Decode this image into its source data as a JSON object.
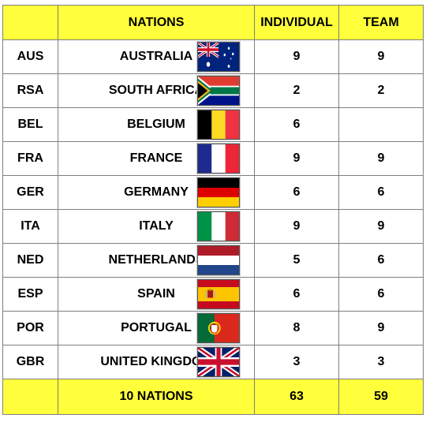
{
  "header": {
    "code": "",
    "nations": "NATIONS",
    "individual": "INDIVIDUAL",
    "team": "TEAM"
  },
  "rows": [
    {
      "code": "AUS",
      "name": "AUSTRALIA",
      "flag": "australia-flag-icon",
      "individual": "9",
      "team": "9"
    },
    {
      "code": "RSA",
      "name": "SOUTH AFRICA",
      "flag": "south-africa-flag-icon",
      "individual": "2",
      "team": "2"
    },
    {
      "code": "BEL",
      "name": "BELGIUM",
      "flag": "belgium-flag-icon",
      "individual": "6",
      "team": ""
    },
    {
      "code": "FRA",
      "name": "FRANCE",
      "flag": "france-flag-icon",
      "individual": "9",
      "team": "9"
    },
    {
      "code": "GER",
      "name": "GERMANY",
      "flag": "germany-flag-icon",
      "individual": "6",
      "team": "6"
    },
    {
      "code": "ITA",
      "name": "ITALY",
      "flag": "italy-flag-icon",
      "individual": "9",
      "team": "9"
    },
    {
      "code": "NED",
      "name": "NETHERLANDS",
      "flag": "netherlands-flag-icon",
      "individual": "5",
      "team": "6"
    },
    {
      "code": "ESP",
      "name": "SPAIN",
      "flag": "spain-flag-icon",
      "individual": "6",
      "team": "6"
    },
    {
      "code": "POR",
      "name": "PORTUGAL",
      "flag": "portugal-flag-icon",
      "individual": "8",
      "team": "9"
    },
    {
      "code": "GBR",
      "name": "UNITED KINGDOM",
      "flag": "united-kingdom-flag-icon",
      "individual": "3",
      "team": "3"
    }
  ],
  "footer": {
    "label": "10 NATIONS",
    "individual_total": "63",
    "team_total": "59"
  },
  "colors": {
    "highlight": "#ffff3b",
    "code_text": "#c8d8ea",
    "border": "#7f7f7f"
  }
}
